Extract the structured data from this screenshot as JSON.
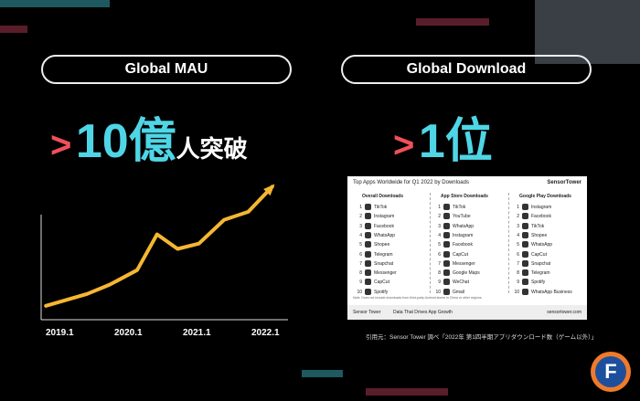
{
  "left": {
    "pill": "Global MAU",
    "headline_arrow": ">",
    "headline_number": "10億",
    "headline_rest": "人突破",
    "chart_data": {
      "type": "line",
      "x": [
        2018.8,
        2019.4,
        2019.73,
        2020.13,
        2020.42,
        2020.72,
        2021.03,
        2021.4,
        2021.75,
        2022.1
      ],
      "values": [
        7,
        16,
        23,
        34,
        61,
        50,
        54,
        72,
        78,
        97
      ],
      "color": "#f5b731",
      "xlim": [
        2018.73,
        2022.33
      ],
      "ylim": [
        0,
        100
      ],
      "xticks": [
        {
          "value": 2019,
          "label": "2019.1"
        },
        {
          "value": 2020,
          "label": "2020.1"
        },
        {
          "value": 2021,
          "label": "2021.1"
        },
        {
          "value": 2022,
          "label": "2022.1"
        }
      ]
    }
  },
  "right": {
    "pill": "Global Download",
    "headline_arrow": ">",
    "headline_number": "1位",
    "table": {
      "title": "Top Apps Worldwide for Q1 2022 by Downloads",
      "brand": "SensorTower",
      "ranks": [
        "1",
        "2",
        "3",
        "4",
        "5",
        "6",
        "7",
        "8",
        "9",
        "10"
      ],
      "columns": [
        {
          "header": "Overall Downloads",
          "apps": [
            "TikTok",
            "Instagram",
            "Facebook",
            "WhatsApp",
            "Shopee",
            "Telegram",
            "Snapchat",
            "Messenger",
            "CapCut",
            "Spotify"
          ]
        },
        {
          "header": "App Store Downloads",
          "apps": [
            "TikTok",
            "YouTube",
            "WhatsApp",
            "Instagram",
            "Facebook",
            "CapCut",
            "Messenger",
            "Google Maps",
            "WeChat",
            "Gmail"
          ]
        },
        {
          "header": "Google Play Downloads",
          "apps": [
            "Instagram",
            "Facebook",
            "TikTok",
            "Shopee",
            "WhatsApp",
            "CapCut",
            "Snapchat",
            "Telegram",
            "Spotify",
            "WhatsApp Business"
          ]
        }
      ],
      "note": "Note: Does not include downloads from third-party Android stores in China or other regions.",
      "footer_brand": "Sensor Tower",
      "footer_tagline": "Data That Drives App Growth",
      "footer_url": "sensortower.com"
    },
    "caption": "引用元：Sensor Tower 調べ「2022年 第1四半期アプリダウンロード数（ゲーム以外）」"
  },
  "logo": "F"
}
